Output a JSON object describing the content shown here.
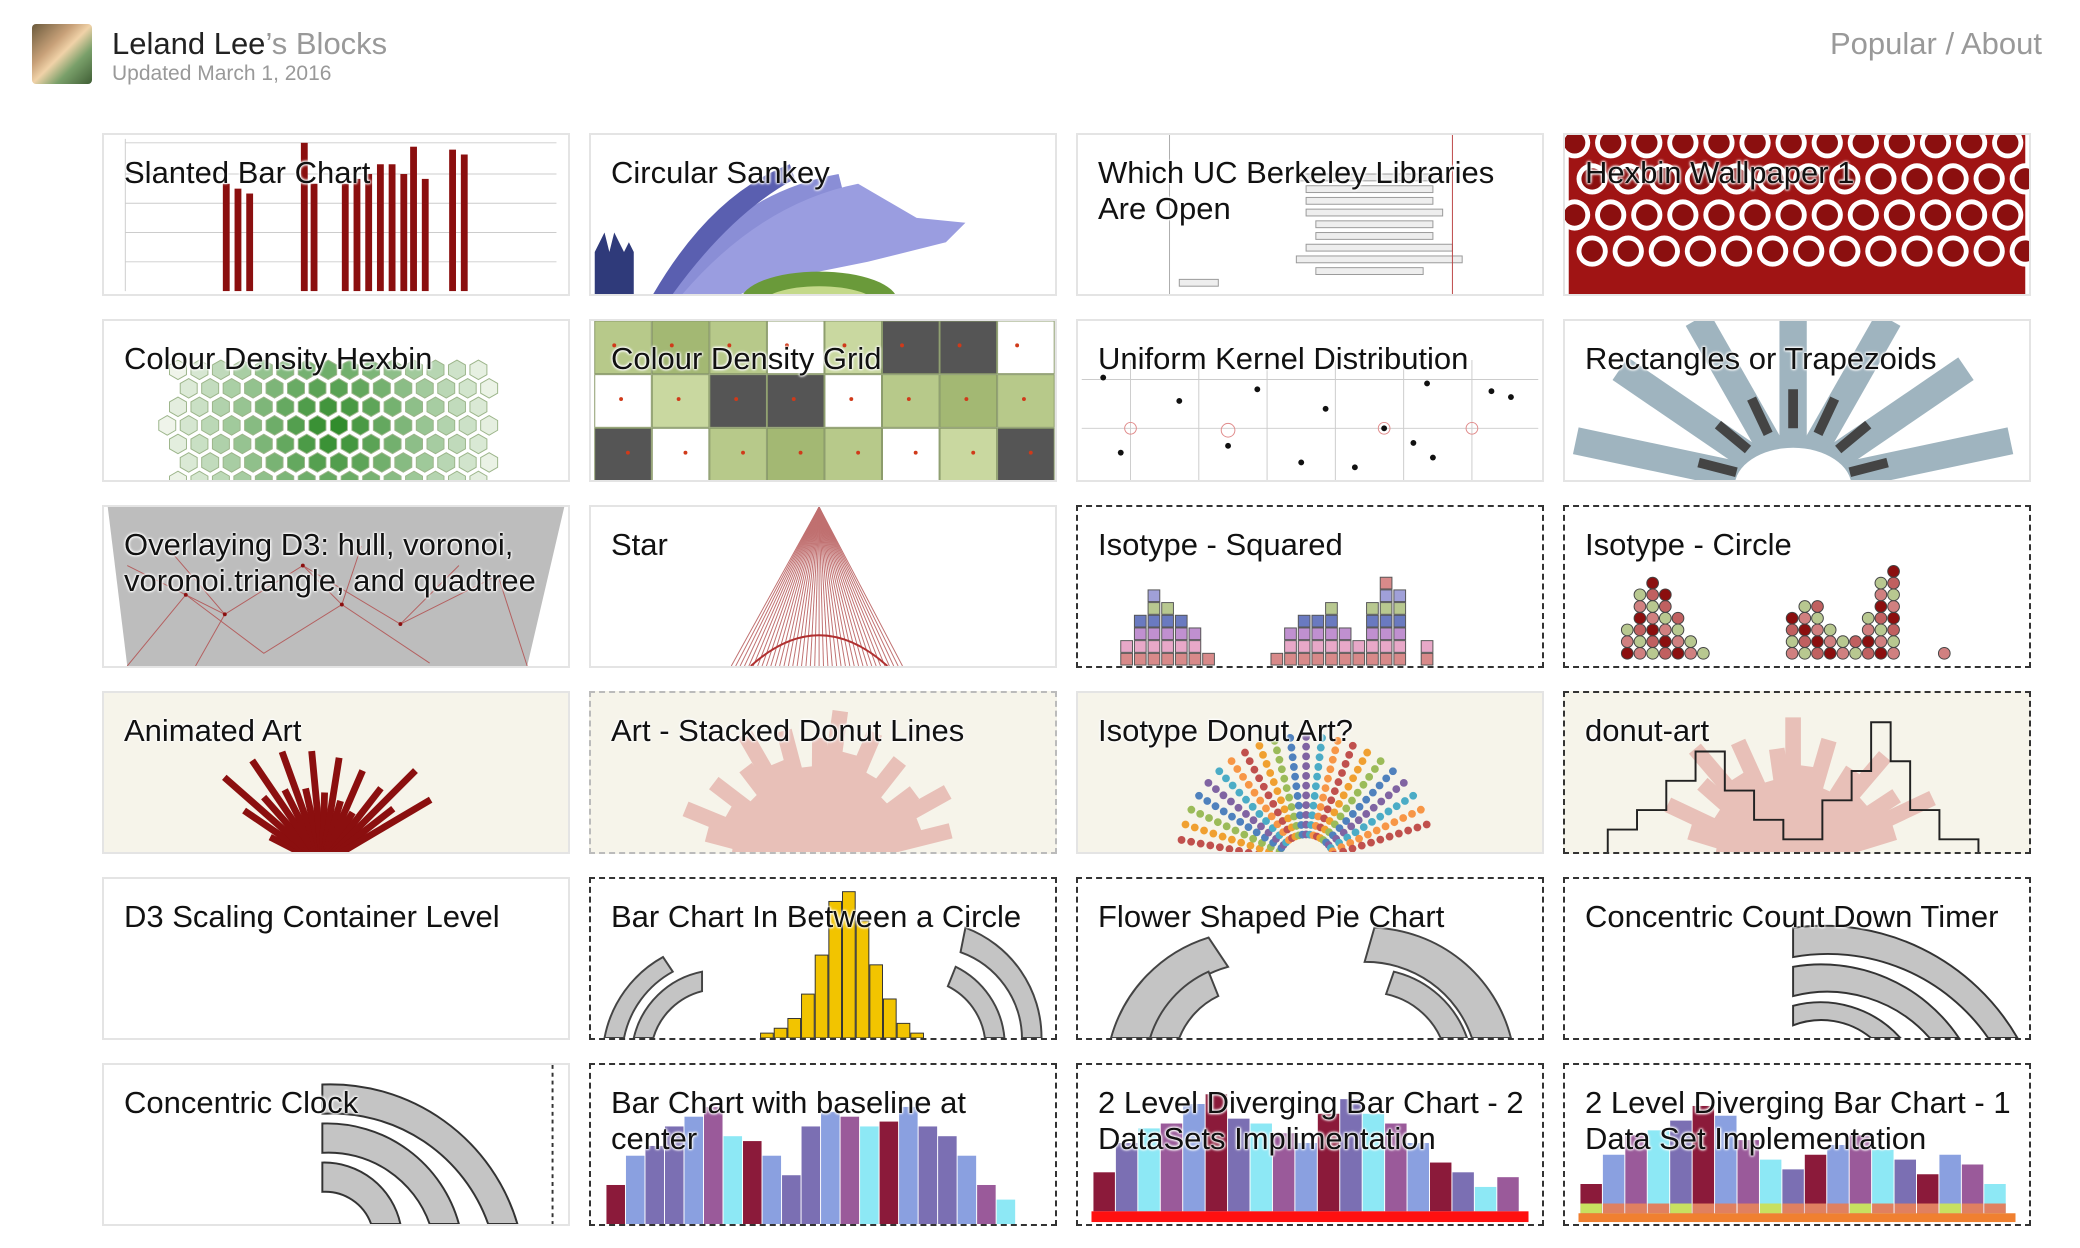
{
  "header": {
    "name": "Leland Lee",
    "suffix": "’s Blocks",
    "updated": "Updated March 1, 2016",
    "nav_popular": "Popular",
    "nav_sep": " / ",
    "nav_about": "About"
  },
  "blocks": [
    {
      "title": "Slanted Bar Chart"
    },
    {
      "title": "Circular Sankey"
    },
    {
      "title": "Which UC Berkeley Libraries Are Open"
    },
    {
      "title": "Hexbin Wallpaper 1"
    },
    {
      "title": "Colour Density Hexbin"
    },
    {
      "title": "Colour Density Grid"
    },
    {
      "title": "Uniform Kernel Distribution"
    },
    {
      "title": "Rectangles or Trapezoids"
    },
    {
      "title": "Overlaying D3: hull, voronoi, voronoi.triangle, and quadtree"
    },
    {
      "title": "Star"
    },
    {
      "title": "Isotype - Squared"
    },
    {
      "title": "Isotype - Circle"
    },
    {
      "title": "Animated Art"
    },
    {
      "title": "Art - Stacked Donut Lines"
    },
    {
      "title": "Isotype Donut Art?"
    },
    {
      "title": "donut-art"
    },
    {
      "title": "D3 Scaling Container Level"
    },
    {
      "title": "Bar Chart In Between a Circle"
    },
    {
      "title": "Flower Shaped Pie Chart"
    },
    {
      "title": "Concentric Count Down Timer"
    },
    {
      "title": "Concentric Clock"
    },
    {
      "title": "Bar Chart with baseline at center"
    },
    {
      "title": "2 Level Diverging Bar Chart - 2 DataSets Implimentation"
    },
    {
      "title": "2 Level Diverging Bar Chart - 1 Data Set Implementation"
    }
  ],
  "colors": {
    "dark_red": "#8b0f0f",
    "steel": "#9fb4bf",
    "green": "#3a8a2a",
    "olive": "#b7c98a",
    "gold": "#f2c400",
    "purple": "#7b6fb3",
    "cyan": "#8de8f5"
  }
}
